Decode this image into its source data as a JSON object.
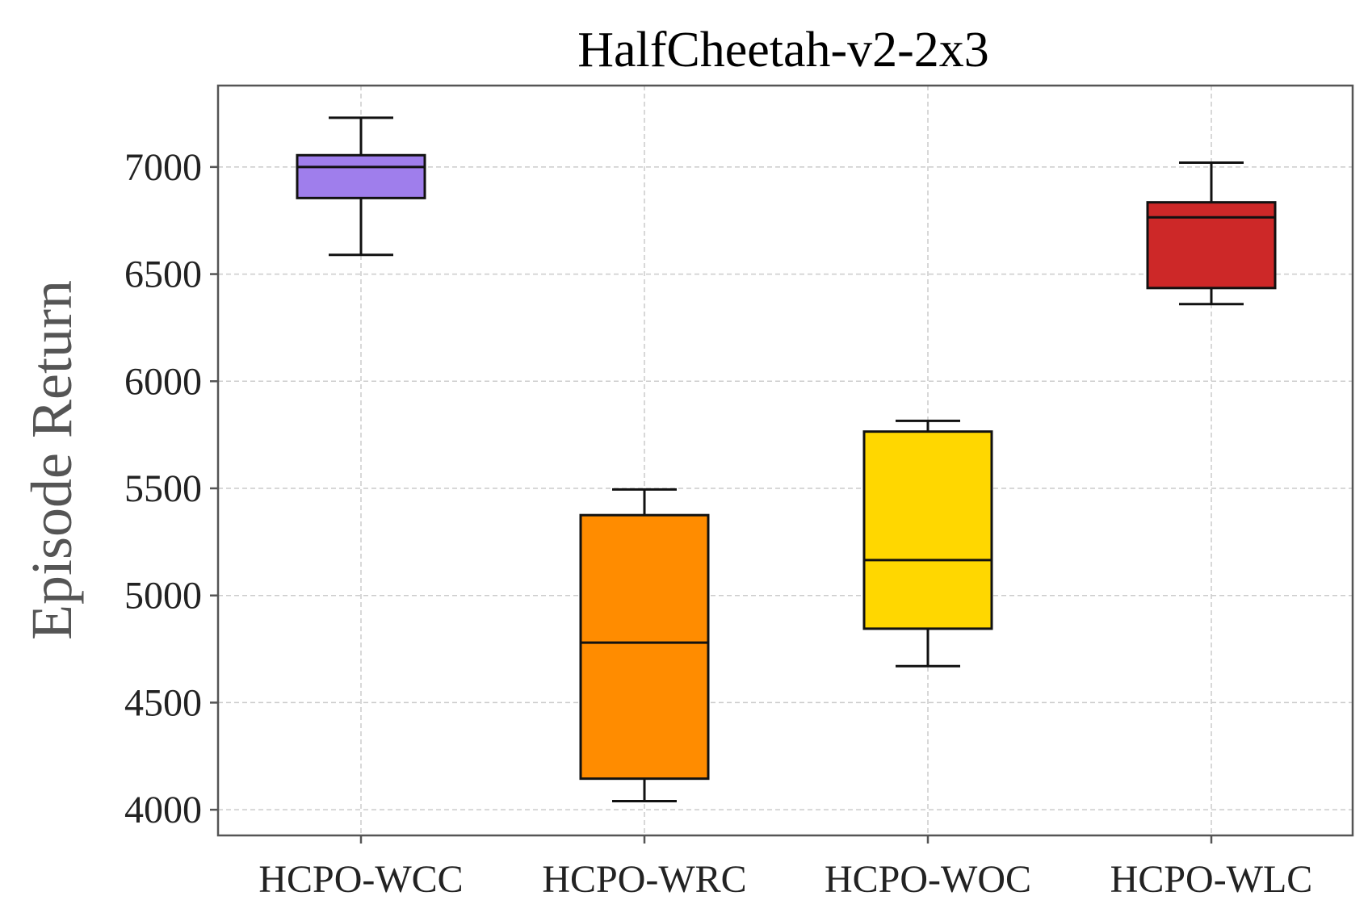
{
  "chart_data": {
    "type": "box",
    "title": "HalfCheetah-v2-2x3",
    "xlabel": "",
    "ylabel": "Episode Return",
    "ylim": [
      3880,
      7380
    ],
    "yticks": [
      4000,
      4500,
      5000,
      5500,
      6000,
      6500,
      7000
    ],
    "grid": true,
    "categories": [
      "HCPO-WCC",
      "HCPO-WRC",
      "HCPO-WOC",
      "HCPO-WLC"
    ],
    "boxes": [
      {
        "name": "HCPO-WCC",
        "whisker_low": 6590,
        "q1": 6855,
        "median": 7000,
        "q3": 7055,
        "whisker_high": 7230,
        "color": "#9f7eec"
      },
      {
        "name": "HCPO-WRC",
        "whisker_low": 4040,
        "q1": 4145,
        "median": 4780,
        "q3": 5375,
        "whisker_high": 5495,
        "color": "#ff8c00"
      },
      {
        "name": "HCPO-WOC",
        "whisker_low": 4670,
        "q1": 4845,
        "median": 5165,
        "q3": 5765,
        "whisker_high": 5815,
        "color": "#ffd700"
      },
      {
        "name": "HCPO-WLC",
        "whisker_low": 6360,
        "q1": 6435,
        "median": 6765,
        "q3": 6835,
        "whisker_high": 7020,
        "color": "#cd2828"
      }
    ]
  }
}
